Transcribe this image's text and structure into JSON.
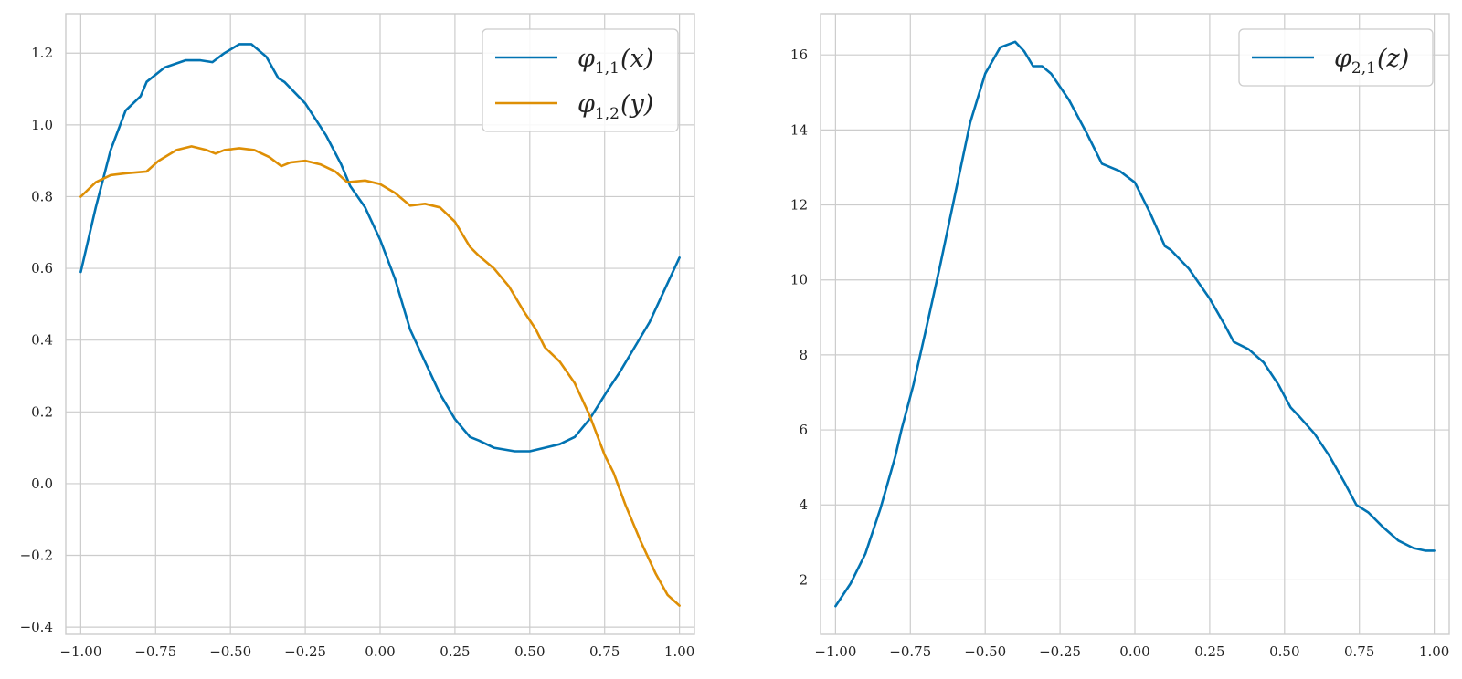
{
  "chart_data": [
    {
      "type": "line",
      "xlim": [
        -1.05,
        1.05
      ],
      "ylim": [
        -0.42,
        1.31
      ],
      "xticks": [
        "−1.00",
        "−0.75",
        "−0.50",
        "−0.25",
        "0.00",
        "0.25",
        "0.50",
        "0.75",
        "1.00"
      ],
      "xtick_values": [
        -1.0,
        -0.75,
        -0.5,
        -0.25,
        0.0,
        0.25,
        0.5,
        0.75,
        1.0
      ],
      "yticks": [
        "−0.4",
        "−0.2",
        "0.0",
        "0.2",
        "0.4",
        "0.6",
        "0.8",
        "1.0",
        "1.2"
      ],
      "ytick_values": [
        -0.4,
        -0.2,
        0.0,
        0.2,
        0.4,
        0.6,
        0.8,
        1.0,
        1.2
      ],
      "grid": true,
      "legend_position": "top-right",
      "series": [
        {
          "name": "φ1,1(x)",
          "base": "φ",
          "subscript": "1,1",
          "arg": "(x)",
          "color": "#0173b2",
          "points": [
            [
              -1.0,
              0.59
            ],
            [
              -0.95,
              0.77
            ],
            [
              -0.9,
              0.93
            ],
            [
              -0.85,
              1.04
            ],
            [
              -0.8,
              1.08
            ],
            [
              -0.78,
              1.12
            ],
            [
              -0.72,
              1.16
            ],
            [
              -0.65,
              1.18
            ],
            [
              -0.6,
              1.18
            ],
            [
              -0.56,
              1.175
            ],
            [
              -0.52,
              1.2
            ],
            [
              -0.47,
              1.225
            ],
            [
              -0.43,
              1.225
            ],
            [
              -0.38,
              1.19
            ],
            [
              -0.34,
              1.13
            ],
            [
              -0.32,
              1.12
            ],
            [
              -0.25,
              1.06
            ],
            [
              -0.18,
              0.97
            ],
            [
              -0.13,
              0.89
            ],
            [
              -0.1,
              0.83
            ],
            [
              -0.05,
              0.77
            ],
            [
              0.0,
              0.68
            ],
            [
              0.05,
              0.57
            ],
            [
              0.1,
              0.43
            ],
            [
              0.15,
              0.34
            ],
            [
              0.2,
              0.25
            ],
            [
              0.25,
              0.18
            ],
            [
              0.3,
              0.13
            ],
            [
              0.33,
              0.12
            ],
            [
              0.38,
              0.1
            ],
            [
              0.45,
              0.09
            ],
            [
              0.5,
              0.09
            ],
            [
              0.55,
              0.1
            ],
            [
              0.6,
              0.11
            ],
            [
              0.65,
              0.13
            ],
            [
              0.7,
              0.18
            ],
            [
              0.73,
              0.22
            ],
            [
              0.76,
              0.26
            ],
            [
              0.8,
              0.31
            ],
            [
              0.85,
              0.38
            ],
            [
              0.9,
              0.45
            ],
            [
              0.95,
              0.54
            ],
            [
              1.0,
              0.63
            ]
          ]
        },
        {
          "name": "φ1,2(y)",
          "base": "φ",
          "subscript": "1,2",
          "arg": "(y)",
          "color": "#de8f05",
          "points": [
            [
              -1.0,
              0.8
            ],
            [
              -0.95,
              0.84
            ],
            [
              -0.9,
              0.86
            ],
            [
              -0.85,
              0.865
            ],
            [
              -0.78,
              0.87
            ],
            [
              -0.74,
              0.9
            ],
            [
              -0.68,
              0.93
            ],
            [
              -0.63,
              0.94
            ],
            [
              -0.58,
              0.93
            ],
            [
              -0.55,
              0.92
            ],
            [
              -0.52,
              0.93
            ],
            [
              -0.47,
              0.935
            ],
            [
              -0.42,
              0.93
            ],
            [
              -0.37,
              0.91
            ],
            [
              -0.33,
              0.885
            ],
            [
              -0.3,
              0.895
            ],
            [
              -0.25,
              0.9
            ],
            [
              -0.2,
              0.89
            ],
            [
              -0.15,
              0.87
            ],
            [
              -0.11,
              0.84
            ],
            [
              -0.05,
              0.845
            ],
            [
              0.0,
              0.835
            ],
            [
              0.05,
              0.81
            ],
            [
              0.1,
              0.775
            ],
            [
              0.15,
              0.78
            ],
            [
              0.2,
              0.77
            ],
            [
              0.25,
              0.73
            ],
            [
              0.3,
              0.66
            ],
            [
              0.33,
              0.635
            ],
            [
              0.38,
              0.6
            ],
            [
              0.43,
              0.55
            ],
            [
              0.48,
              0.48
            ],
            [
              0.52,
              0.43
            ],
            [
              0.55,
              0.38
            ],
            [
              0.6,
              0.34
            ],
            [
              0.65,
              0.28
            ],
            [
              0.7,
              0.19
            ],
            [
              0.75,
              0.08
            ],
            [
              0.78,
              0.03
            ],
            [
              0.82,
              -0.06
            ],
            [
              0.87,
              -0.16
            ],
            [
              0.92,
              -0.25
            ],
            [
              0.96,
              -0.31
            ],
            [
              1.0,
              -0.34
            ]
          ]
        }
      ]
    },
    {
      "type": "line",
      "xlim": [
        -1.05,
        1.05
      ],
      "ylim": [
        0.55,
        17.1
      ],
      "xticks": [
        "−1.00",
        "−0.75",
        "−0.50",
        "−0.25",
        "0.00",
        "0.25",
        "0.50",
        "0.75",
        "1.00"
      ],
      "xtick_values": [
        -1.0,
        -0.75,
        -0.5,
        -0.25,
        0.0,
        0.25,
        0.5,
        0.75,
        1.0
      ],
      "yticks": [
        "2",
        "4",
        "6",
        "8",
        "10",
        "12",
        "14",
        "16"
      ],
      "ytick_values": [
        2,
        4,
        6,
        8,
        10,
        12,
        14,
        16
      ],
      "grid": true,
      "legend_position": "top-right",
      "series": [
        {
          "name": "φ2,1(z)",
          "base": "φ",
          "subscript": "2,1",
          "arg": "(z)",
          "color": "#0173b2",
          "points": [
            [
              -1.0,
              1.3
            ],
            [
              -0.95,
              1.9
            ],
            [
              -0.9,
              2.7
            ],
            [
              -0.85,
              3.9
            ],
            [
              -0.8,
              5.3
            ],
            [
              -0.78,
              6.0
            ],
            [
              -0.74,
              7.2
            ],
            [
              -0.7,
              8.6
            ],
            [
              -0.65,
              10.4
            ],
            [
              -0.6,
              12.3
            ],
            [
              -0.55,
              14.2
            ],
            [
              -0.5,
              15.5
            ],
            [
              -0.45,
              16.2
            ],
            [
              -0.4,
              16.35
            ],
            [
              -0.37,
              16.1
            ],
            [
              -0.34,
              15.7
            ],
            [
              -0.31,
              15.7
            ],
            [
              -0.28,
              15.5
            ],
            [
              -0.22,
              14.8
            ],
            [
              -0.16,
              13.9
            ],
            [
              -0.11,
              13.1
            ],
            [
              -0.05,
              12.9
            ],
            [
              0.0,
              12.6
            ],
            [
              0.05,
              11.8
            ],
            [
              0.1,
              10.9
            ],
            [
              0.12,
              10.8
            ],
            [
              0.18,
              10.3
            ],
            [
              0.25,
              9.5
            ],
            [
              0.3,
              8.8
            ],
            [
              0.33,
              8.35
            ],
            [
              0.38,
              8.15
            ],
            [
              0.43,
              7.8
            ],
            [
              0.48,
              7.2
            ],
            [
              0.52,
              6.6
            ],
            [
              0.55,
              6.35
            ],
            [
              0.6,
              5.9
            ],
            [
              0.65,
              5.3
            ],
            [
              0.7,
              4.6
            ],
            [
              0.74,
              4.0
            ],
            [
              0.78,
              3.8
            ],
            [
              0.83,
              3.4
            ],
            [
              0.88,
              3.05
            ],
            [
              0.93,
              2.85
            ],
            [
              0.97,
              2.78
            ],
            [
              1.0,
              2.78
            ]
          ]
        }
      ]
    }
  ]
}
